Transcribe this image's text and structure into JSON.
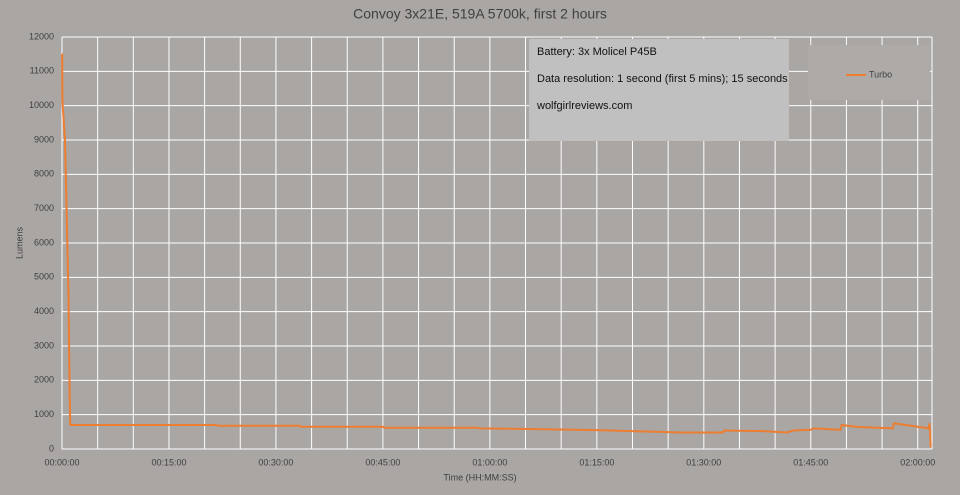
{
  "chart_data": {
    "type": "line",
    "title": "Convoy 3x21E, 519A 5700k, first 2 hours",
    "x_label": "Time (HH:MM:SS)",
    "y_label": "Lumens",
    "annotations": [
      "Battery: 3x Molicel P45B",
      "Data resolution: 1 second (first 5 mins); 15 seconds",
      "wolfgirlreviews.com"
    ],
    "x": [
      0,
      2,
      3,
      6,
      25,
      35,
      45,
      55,
      60,
      65,
      70,
      1300,
      1310,
      2000,
      2010,
      2700,
      2710,
      3500,
      3510,
      4000,
      4500,
      5000,
      5200,
      5560,
      5570,
      5900,
      6100,
      6150,
      6300,
      6320,
      6550,
      6560,
      6700,
      6990,
      7000,
      7200,
      7290,
      7300,
      7310
    ],
    "series": [
      {
        "name": "Turbo",
        "color": "#ed7d31",
        "values": [
          11500,
          11500,
          10200,
          10000,
          9000,
          7500,
          6000,
          4500,
          3000,
          1500,
          700,
          700,
          680,
          680,
          650,
          650,
          620,
          620,
          600,
          580,
          550,
          500,
          480,
          480,
          540,
          520,
          480,
          540,
          560,
          600,
          560,
          700,
          640,
          600,
          750,
          650,
          600,
          750,
          50
        ]
      }
    ],
    "xlim": [
      0,
      7320
    ],
    "ylim": [
      0,
      12000
    ],
    "xticks": [
      {
        "value": 0,
        "label": "00:00:00"
      },
      {
        "value": 900,
        "label": "00:15:00"
      },
      {
        "value": 1800,
        "label": "00:30:00"
      },
      {
        "value": 2700,
        "label": "00:45:00"
      },
      {
        "value": 3600,
        "label": "01:00:00"
      },
      {
        "value": 4500,
        "label": "01:15:00"
      },
      {
        "value": 5400,
        "label": "01:30:00"
      },
      {
        "value": 6300,
        "label": "01:45:00"
      },
      {
        "value": 7200,
        "label": "02:00:00"
      }
    ],
    "x_minor_ticks": [
      300,
      600,
      1200,
      1500,
      2100,
      2400,
      3000,
      3300,
      3900,
      4200,
      4800,
      5100,
      5700,
      6000,
      6600,
      6900,
      7320
    ],
    "yticks": [
      0,
      1000,
      2000,
      3000,
      4000,
      5000,
      6000,
      7000,
      8000,
      9000,
      10000,
      11000,
      12000
    ],
    "grid": true,
    "legend": "top-right"
  }
}
